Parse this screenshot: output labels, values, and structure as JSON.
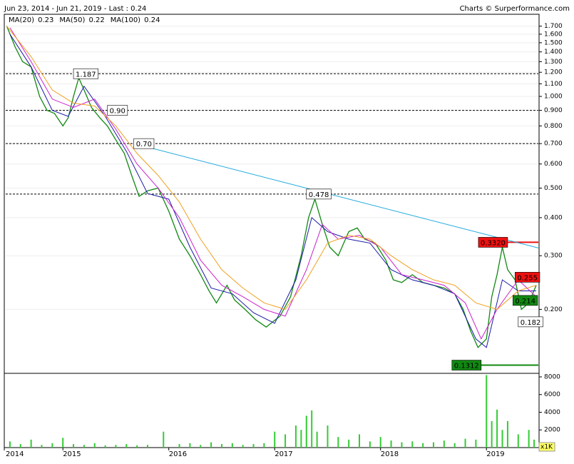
{
  "title": "Jun 23, 2014 - Jun 21, 2019 - Last : 0.24",
  "source": "Charts © Surperformance.com",
  "chart_data": [
    {
      "type": "line",
      "log_scale": true,
      "ylim": [
        0.124,
        1.84
      ],
      "xlim": [
        2014.46,
        2019.49
      ],
      "xticks": [
        2014,
        2015,
        2016,
        2017,
        2018,
        2019
      ],
      "yticks": [
        {
          "value": 0.2,
          "label": "0.200"
        },
        {
          "value": 0.3,
          "label": "0.300"
        },
        {
          "value": 0.4,
          "label": "0.400"
        },
        {
          "value": 0.5,
          "label": "0.500"
        },
        {
          "value": 0.6,
          "label": "0.600"
        },
        {
          "value": 0.7,
          "label": "0.700"
        },
        {
          "value": 0.8,
          "label": "0.800"
        },
        {
          "value": 0.9,
          "label": "0.900"
        },
        {
          "value": 1.0,
          "label": "1.000"
        },
        {
          "value": 1.1,
          "label": "1.100"
        },
        {
          "value": 1.2,
          "label": "1.200"
        },
        {
          "value": 1.3,
          "label": "1.300"
        },
        {
          "value": 1.4,
          "label": "1.400"
        },
        {
          "value": 1.5,
          "label": "1.500"
        },
        {
          "value": 1.6,
          "label": "1.600"
        },
        {
          "value": 1.7,
          "label": "1.700"
        }
      ],
      "series": [
        {
          "color": "#118811",
          "x": [
            2014.47,
            2014.55,
            2014.62,
            2014.7,
            2014.78,
            2014.85,
            2014.92,
            2015.0,
            2015.05,
            2015.1,
            2015.15,
            2015.2,
            2015.27,
            2015.35,
            2015.42,
            2015.5,
            2015.58,
            2015.65,
            2015.72,
            2015.8,
            2015.9,
            2016.0,
            2016.1,
            2016.2,
            2016.3,
            2016.38,
            2016.45,
            2016.55,
            2016.62,
            2016.72,
            2016.82,
            2016.92,
            2017.05,
            2017.15,
            2017.25,
            2017.32,
            2017.38,
            2017.45,
            2017.52,
            2017.6,
            2017.7,
            2017.78,
            2017.85,
            2017.95,
            2018.05,
            2018.12,
            2018.2,
            2018.3,
            2018.4,
            2018.5,
            2018.6,
            2018.7,
            2018.78,
            2018.85,
            2018.92,
            2019.0,
            2019.05,
            2019.1,
            2019.15,
            2019.2,
            2019.27,
            2019.33,
            2019.4,
            2019.47
          ],
          "values": [
            1.7,
            1.45,
            1.3,
            1.25,
            1.0,
            0.9,
            0.88,
            0.8,
            0.85,
            1.0,
            1.15,
            1.05,
            0.92,
            0.85,
            0.8,
            0.72,
            0.65,
            0.55,
            0.47,
            0.49,
            0.5,
            0.42,
            0.34,
            0.3,
            0.26,
            0.23,
            0.21,
            0.24,
            0.215,
            0.2,
            0.185,
            0.175,
            0.19,
            0.22,
            0.3,
            0.4,
            0.46,
            0.38,
            0.32,
            0.3,
            0.36,
            0.37,
            0.34,
            0.33,
            0.29,
            0.25,
            0.245,
            0.26,
            0.245,
            0.24,
            0.235,
            0.225,
            0.2,
            0.17,
            0.15,
            0.16,
            0.22,
            0.26,
            0.32,
            0.27,
            0.25,
            0.2,
            0.21,
            0.24
          ]
        },
        {
          "name": "MA(20)",
          "last": 0.23,
          "color": "#1a1aa8",
          "x": [
            2014.5,
            2014.7,
            2014.9,
            2015.05,
            2015.2,
            2015.4,
            2015.6,
            2015.8,
            2016.0,
            2016.2,
            2016.4,
            2016.6,
            2016.8,
            2017.0,
            2017.2,
            2017.35,
            2017.5,
            2017.7,
            2017.9,
            2018.1,
            2018.3,
            2018.5,
            2018.7,
            2018.9,
            2019.0,
            2019.15,
            2019.3,
            2019.47
          ],
          "values": [
            1.6,
            1.25,
            0.9,
            0.86,
            1.08,
            0.86,
            0.66,
            0.48,
            0.46,
            0.32,
            0.235,
            0.225,
            0.195,
            0.18,
            0.25,
            0.4,
            0.36,
            0.34,
            0.33,
            0.27,
            0.25,
            0.24,
            0.225,
            0.16,
            0.15,
            0.25,
            0.23,
            0.23
          ]
        },
        {
          "name": "MA(50)",
          "last": 0.22,
          "color": "#cc22cc",
          "x": [
            2014.5,
            2014.7,
            2014.9,
            2015.1,
            2015.3,
            2015.5,
            2015.7,
            2015.9,
            2016.1,
            2016.3,
            2016.5,
            2016.7,
            2016.9,
            2017.1,
            2017.3,
            2017.45,
            2017.6,
            2017.8,
            2018.0,
            2018.2,
            2018.4,
            2018.6,
            2018.8,
            2018.95,
            2019.1,
            2019.3,
            2019.47
          ],
          "values": [
            1.68,
            1.3,
            0.98,
            0.92,
            0.98,
            0.78,
            0.6,
            0.5,
            0.4,
            0.29,
            0.24,
            0.22,
            0.2,
            0.19,
            0.27,
            0.38,
            0.34,
            0.35,
            0.32,
            0.26,
            0.25,
            0.24,
            0.21,
            0.16,
            0.2,
            0.25,
            0.22
          ]
        },
        {
          "name": "MA(100)",
          "last": 0.24,
          "color": "#f0a020",
          "x": [
            2014.47,
            2014.7,
            2014.9,
            2015.1,
            2015.3,
            2015.5,
            2015.7,
            2015.9,
            2016.1,
            2016.3,
            2016.5,
            2016.7,
            2016.9,
            2017.1,
            2017.3,
            2017.5,
            2017.7,
            2017.9,
            2018.1,
            2018.3,
            2018.5,
            2018.7,
            2018.9,
            2019.1,
            2019.3,
            2019.47
          ],
          "values": [
            1.7,
            1.35,
            1.05,
            0.95,
            0.93,
            0.8,
            0.65,
            0.55,
            0.45,
            0.34,
            0.27,
            0.235,
            0.21,
            0.2,
            0.25,
            0.33,
            0.35,
            0.34,
            0.3,
            0.27,
            0.25,
            0.24,
            0.21,
            0.2,
            0.23,
            0.24
          ]
        }
      ],
      "trendline": {
        "color": "#22aadd",
        "x": [
          2015.67,
          2019.49
        ],
        "values": [
          0.7,
          0.318
        ]
      },
      "annotations": [
        {
          "x": 2015.1,
          "value": 1.187,
          "label": "1.187",
          "style": "dashed",
          "color": "#ffffff"
        },
        {
          "x": 2015.42,
          "value": 0.9,
          "label": "0.90",
          "style": "dashed",
          "color": "#ffffff"
        },
        {
          "x": 2015.67,
          "value": 0.7,
          "label": "0.70",
          "style": "dashed",
          "color": "#ffffff"
        },
        {
          "x": 2017.3,
          "value": 0.478,
          "label": "0.478",
          "style": "dashed",
          "color": "#ffffff"
        },
        {
          "x": 2019.2,
          "value": 0.332,
          "label": "0.3320",
          "style": "solid",
          "color": "#ee1111"
        },
        {
          "x": 2019.27,
          "value": 0.255,
          "label": "0.255",
          "style": "none",
          "color": "#ee1111"
        },
        {
          "x": 2019.25,
          "value": 0.214,
          "label": "0.214",
          "style": "none",
          "color": "#118811"
        },
        {
          "x": 2019.3,
          "value": 0.182,
          "label": "0.182",
          "style": "none",
          "color": "#ffffff"
        },
        {
          "x": 2018.95,
          "value": 0.1312,
          "label": "0.1312",
          "style": "solid",
          "color": "#118811"
        }
      ]
    },
    {
      "type": "bar",
      "unit_label": "x1K",
      "color": "#33cc33",
      "ylim": [
        0,
        8240
      ],
      "yticks": [
        2000,
        4000,
        6000,
        8000
      ],
      "x": [
        2014.5,
        2014.6,
        2014.7,
        2014.8,
        2014.9,
        2015.0,
        2015.1,
        2015.2,
        2015.3,
        2015.4,
        2015.5,
        2015.6,
        2015.7,
        2015.8,
        2015.95,
        2016.1,
        2016.2,
        2016.3,
        2016.4,
        2016.5,
        2016.6,
        2016.7,
        2016.8,
        2016.9,
        2017.0,
        2017.1,
        2017.2,
        2017.25,
        2017.3,
        2017.35,
        2017.4,
        2017.5,
        2017.6,
        2017.7,
        2017.8,
        2017.9,
        2018.0,
        2018.1,
        2018.2,
        2018.3,
        2018.4,
        2018.5,
        2018.6,
        2018.7,
        2018.8,
        2018.9,
        2019.0,
        2019.05,
        2019.1,
        2019.15,
        2019.2,
        2019.3,
        2019.4,
        2019.45
      ],
      "values": [
        700,
        400,
        900,
        300,
        500,
        1100,
        400,
        300,
        500,
        250,
        300,
        400,
        250,
        300,
        1800,
        400,
        500,
        300,
        600,
        400,
        500,
        300,
        400,
        500,
        1800,
        1500,
        2500,
        2000,
        3600,
        4200,
        1800,
        2500,
        1200,
        900,
        1500,
        700,
        1200,
        800,
        600,
        700,
        500,
        600,
        800,
        500,
        1000,
        900,
        8200,
        3000,
        4300,
        2000,
        3000,
        1500,
        2000,
        900
      ]
    }
  ]
}
